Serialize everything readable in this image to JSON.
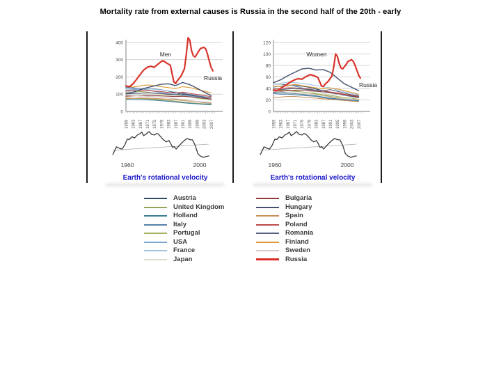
{
  "title": "Mortality rate from external causes is Russia in the second half of the 20th - early",
  "chart_data": [
    {
      "id": "men",
      "type": "line",
      "title": "Men",
      "annotation": "Men",
      "russia_label": "Russia",
      "xlabel": "",
      "ylabel": "",
      "ylim": [
        0,
        450
      ],
      "yticks": [
        0,
        100,
        200,
        300,
        400
      ],
      "x_years": [
        1959,
        1963,
        1967,
        1971,
        1975,
        1979,
        1983,
        1987,
        1991,
        1995,
        1999,
        2003,
        2007
      ],
      "grid": true,
      "series": [
        {
          "name": "Austria",
          "color": "#2e4d6e",
          "y": [
            138,
            136,
            134,
            132,
            130,
            126,
            118,
            108,
            100,
            94,
            86,
            78,
            70
          ]
        },
        {
          "name": "United Kingdom",
          "color": "#9aa05a",
          "y": [
            78,
            76,
            75,
            73,
            71,
            68,
            64,
            59,
            54,
            50,
            47,
            44,
            41
          ]
        },
        {
          "name": "Holland",
          "color": "#3d7e96",
          "y": [
            70,
            69,
            68,
            67,
            65,
            62,
            58,
            54,
            50,
            47,
            44,
            41,
            38
          ]
        },
        {
          "name": "Italy",
          "color": "#5580a8",
          "y": [
            92,
            91,
            90,
            88,
            86,
            83,
            78,
            72,
            66,
            61,
            56,
            51,
            47
          ]
        },
        {
          "name": "Portugal",
          "color": "#a8b060",
          "y": [
            108,
            112,
            116,
            112,
            106,
            101,
            96,
            95,
            90,
            84,
            78,
            72,
            66
          ]
        },
        {
          "name": "USA",
          "color": "#7da7cc",
          "y": [
            122,
            126,
            130,
            126,
            116,
            110,
            104,
            99,
            94,
            89,
            84,
            82,
            80
          ]
        },
        {
          "name": "France",
          "color": "#a4c4e4",
          "y": [
            128,
            131,
            134,
            131,
            128,
            125,
            119,
            113,
            107,
            98,
            92,
            87,
            80
          ]
        },
        {
          "name": "Japan",
          "color": "#d9e2d0",
          "y": [
            118,
            112,
            102,
            93,
            88,
            84,
            79,
            74,
            70,
            68,
            73,
            70,
            64
          ]
        },
        {
          "name": "Bulgaria",
          "color": "#8e3b3a",
          "y": [
            88,
            90,
            92,
            93,
            92,
            90,
            88,
            86,
            88,
            85,
            80,
            76,
            72
          ]
        },
        {
          "name": "Spain",
          "color": "#c89058",
          "y": [
            74,
            76,
            78,
            77,
            75,
            73,
            70,
            67,
            64,
            60,
            56,
            52,
            48
          ]
        },
        {
          "name": "Poland",
          "color": "#bc4a48",
          "y": [
            118,
            120,
            122,
            121,
            118,
            115,
            110,
            106,
            112,
            105,
            98,
            92,
            86
          ]
        },
        {
          "name": "Romania",
          "color": "#556082",
          "y": [
            102,
            104,
            106,
            107,
            106,
            104,
            100,
            96,
            104,
            98,
            90,
            84,
            78
          ]
        },
        {
          "name": "Finland",
          "color": "#dd9933",
          "y": [
            146,
            142,
            148,
            154,
            150,
            144,
            138,
            132,
            144,
            138,
            128,
            118,
            108
          ]
        },
        {
          "name": "Sweden",
          "color": "#d8c8c4",
          "y": [
            94,
            92,
            90,
            88,
            85,
            82,
            78,
            73,
            68,
            63,
            58,
            55,
            52
          ]
        },
        {
          "name": "Hungary",
          "color": "#44506e",
          "width": 1.4,
          "y": [
            103,
            112,
            126,
            138,
            148,
            158,
            160,
            150,
            168,
            155,
            135,
            112,
            92
          ]
        },
        {
          "name": "Russia",
          "color": "#d8342c",
          "width": 2.2,
          "x": [
            1959,
            1961,
            1963,
            1965,
            1967,
            1969,
            1971,
            1973,
            1975,
            1977,
            1979,
            1980,
            1982,
            1984,
            1986,
            1987,
            1988,
            1990,
            1992,
            1993,
            1994,
            1995,
            1996,
            1997,
            1998,
            2000,
            2001,
            2003,
            2004,
            2005,
            2006,
            2007,
            2008
          ],
          "y": [
            148,
            144,
            160,
            186,
            214,
            240,
            256,
            262,
            256,
            274,
            290,
            294,
            280,
            268,
            172,
            162,
            178,
            205,
            248,
            330,
            428,
            412,
            352,
            322,
            316,
            350,
            365,
            372,
            362,
            330,
            292,
            255,
            235
          ]
        }
      ]
    },
    {
      "id": "women",
      "type": "line",
      "title": "Women",
      "annotation": "Women",
      "russia_label": "Russia",
      "xlabel": "",
      "ylabel": "",
      "ylim": [
        0,
        130
      ],
      "yticks": [
        0,
        20,
        40,
        60,
        80,
        100,
        120
      ],
      "x_years": [
        1959,
        1963,
        1967,
        1971,
        1975,
        1979,
        1983,
        1987,
        1991,
        1995,
        1999,
        2003,
        2007
      ],
      "grid": true,
      "series": [
        {
          "name": "Austria",
          "color": "#2e4d6e",
          "y": [
            48,
            47,
            46,
            45,
            44,
            42,
            39,
            36,
            33,
            30,
            28,
            26,
            24
          ]
        },
        {
          "name": "United Kingdom",
          "color": "#9aa05a",
          "y": [
            38,
            37,
            36,
            35,
            34,
            32,
            30,
            28,
            26,
            24,
            22,
            21,
            20
          ]
        },
        {
          "name": "Holland",
          "color": "#3d7e96",
          "y": [
            33,
            32,
            32,
            31,
            30,
            28,
            27,
            25,
            23,
            22,
            21,
            20,
            19
          ]
        },
        {
          "name": "Italy",
          "color": "#5580a8",
          "y": [
            31,
            30,
            30,
            29,
            28,
            27,
            26,
            24,
            22,
            21,
            20,
            19,
            18
          ]
        },
        {
          "name": "Portugal",
          "color": "#a8b060",
          "y": [
            34,
            36,
            37,
            36,
            34,
            32,
            31,
            29,
            28,
            26,
            24,
            23,
            21
          ]
        },
        {
          "name": "USA",
          "color": "#7da7cc",
          "y": [
            42,
            44,
            46,
            44,
            41,
            38,
            36,
            34,
            32,
            30,
            28,
            27,
            26
          ]
        },
        {
          "name": "France",
          "color": "#a4c4e4",
          "y": [
            47,
            49,
            51,
            50,
            49,
            47,
            45,
            43,
            41,
            37,
            34,
            31,
            29
          ]
        },
        {
          "name": "Japan",
          "color": "#d9e2d0",
          "y": [
            49,
            47,
            43,
            39,
            37,
            35,
            33,
            31,
            29,
            29,
            30,
            28,
            26
          ]
        },
        {
          "name": "Bulgaria",
          "color": "#8e3b3a",
          "y": [
            34,
            35,
            36,
            37,
            37,
            36,
            35,
            34,
            33,
            31,
            29,
            27,
            25
          ]
        },
        {
          "name": "Spain",
          "color": "#c89058",
          "y": [
            24,
            25,
            26,
            26,
            25,
            24,
            23,
            22,
            21,
            20,
            19,
            18,
            17
          ]
        },
        {
          "name": "Poland",
          "color": "#bc4a48",
          "y": [
            39,
            40,
            41,
            41,
            40,
            39,
            37,
            36,
            34,
            32,
            30,
            28,
            26
          ]
        },
        {
          "name": "Romania",
          "color": "#556082",
          "y": [
            37,
            38,
            39,
            40,
            39,
            38,
            37,
            36,
            38,
            35,
            32,
            29,
            27
          ]
        },
        {
          "name": "Finland",
          "color": "#dd9933",
          "y": [
            44,
            43,
            45,
            47,
            45,
            43,
            41,
            39,
            41,
            39,
            36,
            33,
            30
          ]
        },
        {
          "name": "Sweden",
          "color": "#d8c8c4",
          "y": [
            35,
            34,
            33,
            32,
            31,
            30,
            29,
            27,
            25,
            23,
            22,
            21,
            20
          ]
        },
        {
          "name": "Hungary",
          "color": "#44506e",
          "width": 1.4,
          "y": [
            50,
            55,
            62,
            68,
            74,
            75,
            72,
            73,
            68,
            58,
            48,
            42,
            36
          ]
        },
        {
          "name": "Russia",
          "color": "#d8342c",
          "width": 2.2,
          "x": [
            1959,
            1961,
            1963,
            1965,
            1967,
            1969,
            1971,
            1973,
            1975,
            1977,
            1979,
            1980,
            1982,
            1984,
            1986,
            1987,
            1988,
            1990,
            1992,
            1993,
            1994,
            1995,
            1996,
            1997,
            1998,
            2000,
            2001,
            2003,
            2004,
            2005,
            2006,
            2007,
            2008
          ],
          "y": [
            37,
            36,
            40,
            44,
            48,
            52,
            55,
            57,
            56,
            60,
            63,
            64,
            62,
            59,
            45,
            43,
            47,
            53,
            62,
            78,
            100,
            96,
            84,
            76,
            74,
            82,
            87,
            90,
            87,
            80,
            72,
            63,
            58
          ]
        }
      ]
    },
    {
      "id": "velocity",
      "type": "line",
      "title": "Earth's rotational velocity",
      "xtick_labels": [
        "1960",
        "2000"
      ],
      "xtick_years": [
        1960,
        2000
      ],
      "grid": false,
      "x": [
        1952,
        1954,
        1955.5,
        1957,
        1958.5,
        1960,
        1961,
        1962.5,
        1964,
        1965.5,
        1967,
        1968,
        1969,
        1970.5,
        1972,
        1973.5,
        1975,
        1976,
        1977,
        1978.5,
        1980,
        1981.5,
        1983,
        1984,
        1985,
        1986,
        1987,
        1988.5,
        1990,
        1991.5,
        1993,
        1994.5,
        1996,
        1997.5,
        1999,
        2000.5,
        2002,
        2003.5,
        2005
      ],
      "values": [
        -1.0,
        0.35,
        0.1,
        -0.05,
        0.6,
        1.7,
        1.6,
        2.1,
        1.9,
        2.4,
        2.65,
        2.9,
        2.3,
        2.6,
        3.0,
        2.5,
        2.4,
        2.65,
        2.6,
        2.1,
        1.55,
        1.2,
        1.45,
        0.9,
        0.25,
        0.35,
        -0.05,
        0.5,
        1.0,
        1.45,
        1.8,
        1.6,
        1.55,
        0.6,
        -0.85,
        -1.3,
        -1.5,
        -1.35,
        -1.25
      ],
      "trend": {
        "x": [
          1952,
          2005
        ],
        "values": [
          -0.25,
          0.8
        ]
      },
      "line_color": "#3a3a3a",
      "trend_color": "#b5b5b5"
    }
  ],
  "legend": {
    "columns": [
      {
        "items": [
          {
            "label": "Austria",
            "color": "#2e4d6e"
          },
          {
            "label": "United Kingdom",
            "color": "#9aa05a"
          },
          {
            "label": "Holland",
            "color": "#3d7e96"
          },
          {
            "label": "Italy",
            "color": "#5580a8"
          },
          {
            "label": "Portugal",
            "color": "#a8b060"
          },
          {
            "label": "USA",
            "color": "#7da7cc"
          },
          {
            "label": "France",
            "color": "#a4c4e4"
          },
          {
            "label": "Japan",
            "color": "#d9e2d0"
          }
        ]
      },
      {
        "items": [
          {
            "label": "Bulgaria",
            "color": "#8e3b3a"
          },
          {
            "label": "Hungary",
            "color": "#44506e"
          },
          {
            "label": "Spain",
            "color": "#c89058"
          },
          {
            "label": "Poland",
            "color": "#bc4a48"
          },
          {
            "label": "Romania",
            "color": "#556082"
          },
          {
            "label": "Finland",
            "color": "#dd9933"
          },
          {
            "label": "Sweden",
            "color": "#d8c8c4"
          },
          {
            "label": "Russia",
            "color": "#dd2a22",
            "thick": true
          }
        ]
      }
    ]
  }
}
